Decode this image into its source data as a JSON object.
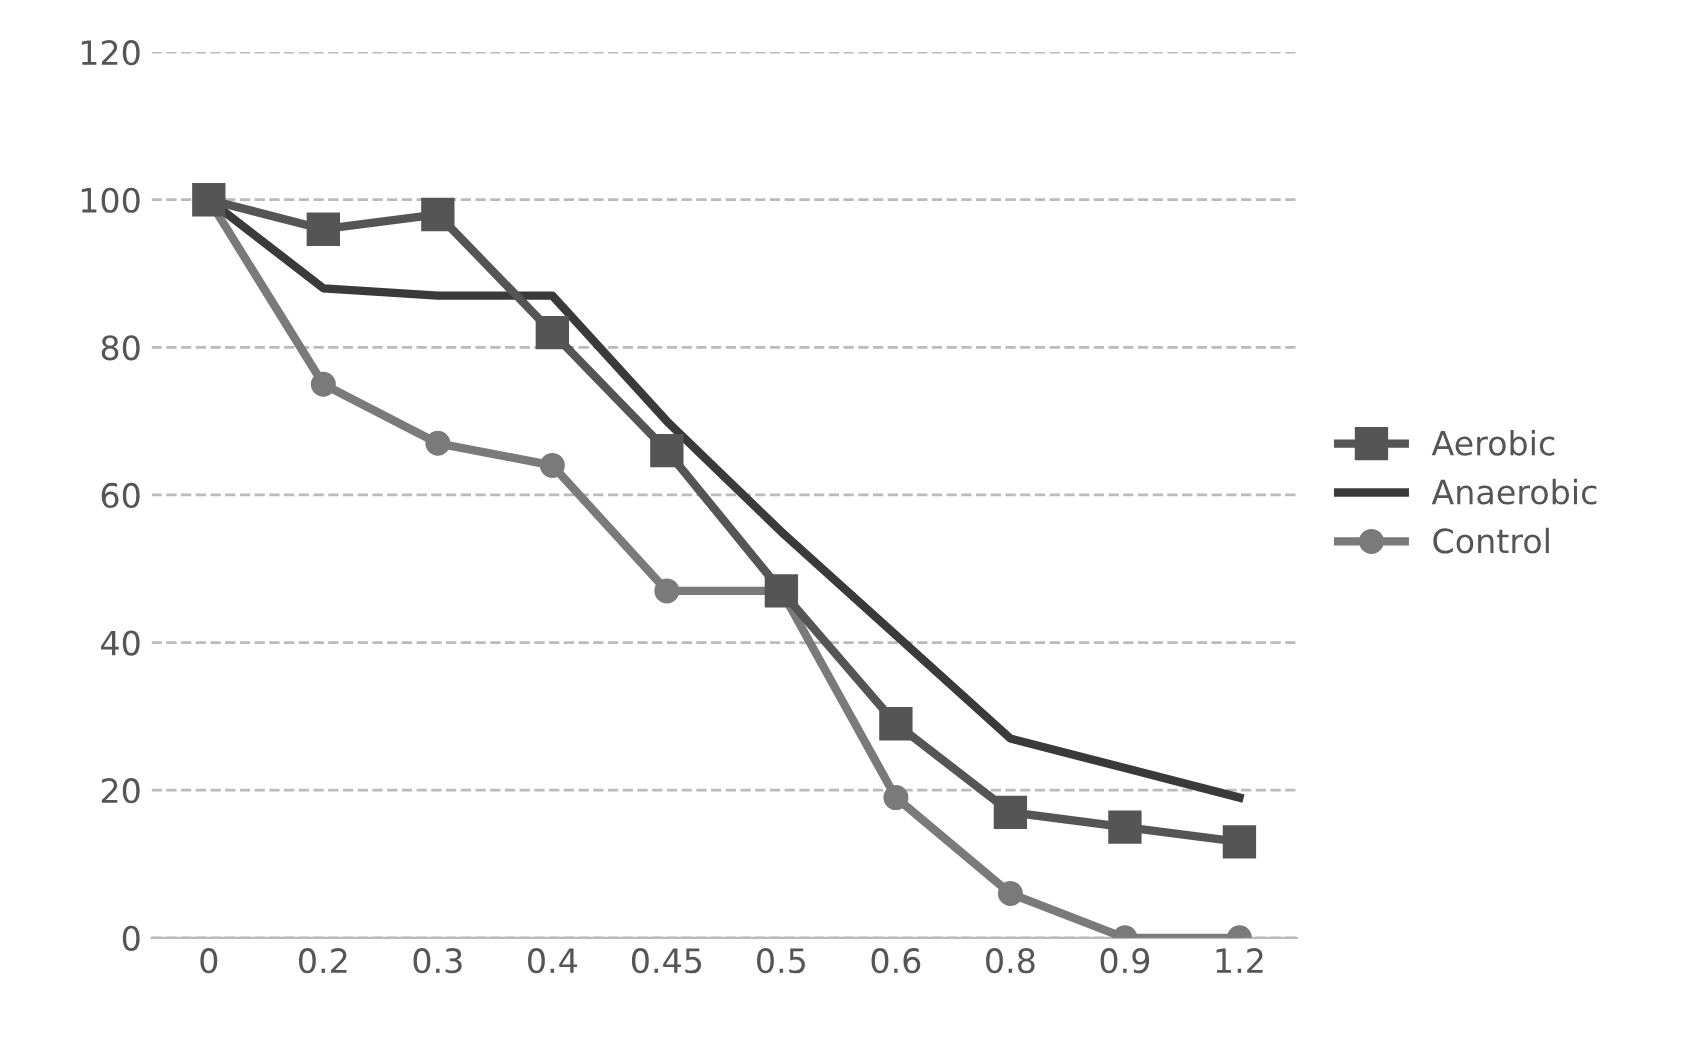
{
  "chart_data": {
    "type": "line",
    "categories": [
      "0",
      "0.2",
      "0.3",
      "0.4",
      "0.45",
      "0.5",
      "0.6",
      "0.8",
      "0.9",
      "1.2"
    ],
    "series": [
      {
        "name": "Aerobic",
        "color": "#555555",
        "marker": "square",
        "values": [
          100,
          96,
          98,
          82,
          66,
          47,
          29,
          17,
          15,
          13
        ]
      },
      {
        "name": "Anaerobic",
        "color": "#3a3a3a",
        "marker": "none",
        "values": [
          100,
          88,
          87,
          87,
          70,
          55,
          41,
          27,
          23,
          19
        ]
      },
      {
        "name": "Control",
        "color": "#7a7a7a",
        "marker": "circle",
        "values": [
          100,
          75,
          67,
          64,
          47,
          47,
          19,
          6,
          0,
          0
        ]
      }
    ],
    "ylim": [
      0,
      120
    ],
    "yticks": [
      0,
      20,
      40,
      60,
      80,
      100,
      120
    ],
    "grid": "y",
    "legend": "right"
  }
}
